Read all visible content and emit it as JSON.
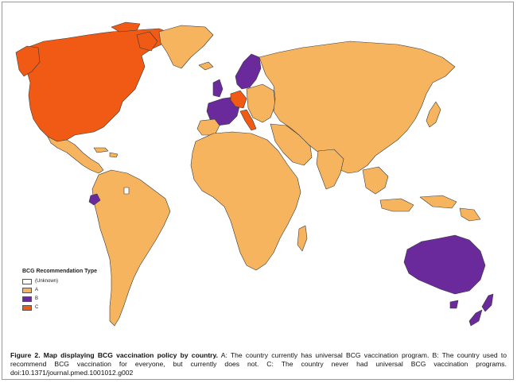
{
  "legend": {
    "title": "BCG Recommendation Type",
    "items": [
      {
        "label": "(Unknown)",
        "color": "#ffffff"
      },
      {
        "label": "A",
        "color": "#f7b45e"
      },
      {
        "label": "B",
        "color": "#6a2a9c"
      },
      {
        "label": "C",
        "color": "#f05a14"
      }
    ]
  },
  "colors": {
    "A": "#f7b45e",
    "B": "#6a2a9c",
    "C": "#f05a14",
    "unknown": "#ffffff",
    "border": "#3a3a3a",
    "ocean": "#ffffff"
  },
  "caption": {
    "label": "Figure 2.",
    "title": "Map displaying BCG vaccination policy by country.",
    "body": "A: The country currently has universal BCG vaccination program. B: The country used to recommend BCG vaccination for everyone, but currently does not. C: The country never had universal BCG vaccination programs. doi:10.1371/journal.pmed.1001012.g002"
  }
}
